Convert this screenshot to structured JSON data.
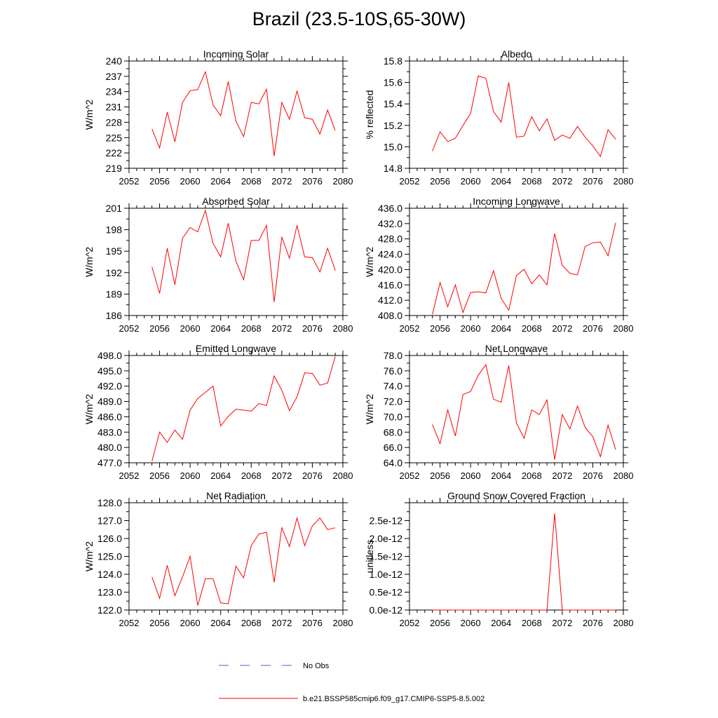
{
  "figure": {
    "title": "Brazil (23.5-10S,65-30W)",
    "line_color": "#ff0000",
    "obs_color": "#5a5ad6",
    "legend": {
      "obs_label": "No Obs",
      "model_label": "b.e21.BSSP585cmip6.f09_g17.CMIP6-SSP5-8.5.002"
    }
  },
  "chart_data": [
    {
      "type": "line",
      "title": "Incoming Solar",
      "ylabel": "W/m^2",
      "xlim": [
        2052,
        2080
      ],
      "x_ticks": [
        2052,
        2056,
        2060,
        2064,
        2068,
        2072,
        2076,
        2080
      ],
      "ylim": [
        219,
        240
      ],
      "y_ticks": [
        219,
        222,
        225,
        228,
        231,
        234,
        237,
        240
      ],
      "y_tick_labels": [
        "219",
        "222",
        "225",
        "228",
        "231",
        "234",
        "237",
        "240"
      ],
      "x": [
        2055,
        2056,
        2057,
        2058,
        2059,
        2060,
        2061,
        2062,
        2063,
        2064,
        2065,
        2066,
        2067,
        2068,
        2069,
        2070,
        2071,
        2072,
        2073,
        2074,
        2075,
        2076,
        2077,
        2078,
        2079
      ],
      "series": [
        {
          "values": [
            226.7,
            223.0,
            230.0,
            224.2,
            231.9,
            234.2,
            234.4,
            237.9,
            231.4,
            229.3,
            236.0,
            228.2,
            225.2,
            231.9,
            231.6,
            234.5,
            221.4,
            231.9,
            228.6,
            234.1,
            228.9,
            228.6,
            225.7,
            230.4,
            226.4
          ]
        }
      ]
    },
    {
      "type": "line",
      "title": "Albedo",
      "ylabel": "% reflected",
      "xlim": [
        2052,
        2080
      ],
      "x_ticks": [
        2052,
        2056,
        2060,
        2064,
        2068,
        2072,
        2076,
        2080
      ],
      "ylim": [
        14.8,
        15.8
      ],
      "y_ticks": [
        14.8,
        15.0,
        15.2,
        15.4,
        15.6,
        15.8
      ],
      "y_tick_labels": [
        "14.8",
        "15.0",
        "15.2",
        "15.4",
        "15.6",
        "15.8"
      ],
      "x": [
        2055,
        2056,
        2057,
        2058,
        2059,
        2060,
        2061,
        2062,
        2063,
        2064,
        2065,
        2066,
        2067,
        2068,
        2069,
        2070,
        2071,
        2072,
        2073,
        2074,
        2075,
        2076,
        2077,
        2078,
        2079
      ],
      "series": [
        {
          "values": [
            14.96,
            15.14,
            15.05,
            15.08,
            15.2,
            15.31,
            15.66,
            15.64,
            15.33,
            15.23,
            15.6,
            15.09,
            15.1,
            15.28,
            15.15,
            15.26,
            15.06,
            15.11,
            15.08,
            15.19,
            15.09,
            15.01,
            14.91,
            15.16,
            15.07
          ]
        }
      ]
    },
    {
      "type": "line",
      "title": "Absorbed Solar",
      "ylabel": "W/m^2",
      "xlim": [
        2052,
        2080
      ],
      "x_ticks": [
        2052,
        2056,
        2060,
        2064,
        2068,
        2072,
        2076,
        2080
      ],
      "ylim": [
        186,
        201
      ],
      "y_ticks": [
        186,
        189,
        192,
        195,
        198,
        201
      ],
      "y_tick_labels": [
        "186",
        "189",
        "192",
        "195",
        "198",
        "201"
      ],
      "x": [
        2055,
        2056,
        2057,
        2058,
        2059,
        2060,
        2061,
        2062,
        2063,
        2064,
        2065,
        2066,
        2067,
        2068,
        2069,
        2070,
        2071,
        2072,
        2073,
        2074,
        2075,
        2076,
        2077,
        2078,
        2079
      ],
      "series": [
        {
          "values": [
            192.8,
            189.1,
            195.4,
            190.3,
            196.8,
            198.3,
            197.7,
            200.7,
            196.1,
            194.2,
            198.9,
            193.6,
            191.0,
            196.5,
            196.5,
            198.6,
            187.9,
            197.0,
            194.0,
            198.6,
            194.2,
            194.1,
            192.1,
            195.4,
            192.3
          ]
        }
      ]
    },
    {
      "type": "line",
      "title": "Incoming Longwave",
      "ylabel": "W/m^2",
      "xlim": [
        2052,
        2080
      ],
      "x_ticks": [
        2052,
        2056,
        2060,
        2064,
        2068,
        2072,
        2076,
        2080
      ],
      "ylim": [
        408,
        436
      ],
      "y_ticks": [
        408,
        412,
        416,
        420,
        424,
        428,
        432,
        436
      ],
      "y_tick_labels": [
        "408.0",
        "412.0",
        "416.0",
        "420.0",
        "424.0",
        "428.0",
        "432.0",
        "436.0"
      ],
      "x": [
        2055,
        2056,
        2057,
        2058,
        2059,
        2060,
        2061,
        2062,
        2063,
        2064,
        2065,
        2066,
        2067,
        2068,
        2069,
        2070,
        2071,
        2072,
        2073,
        2074,
        2075,
        2076,
        2077,
        2078,
        2079
      ],
      "series": [
        {
          "values": [
            408.3,
            416.6,
            410.3,
            416.0,
            408.8,
            414.0,
            414.2,
            413.9,
            419.7,
            412.5,
            409.4,
            418.4,
            420.1,
            416.3,
            418.6,
            416.0,
            429.4,
            421.1,
            419.0,
            418.6,
            426.0,
            427.0,
            427.2,
            423.6,
            432.2
          ]
        }
      ]
    },
    {
      "type": "line",
      "title": "Emitted Longwave",
      "ylabel": "W/m^2",
      "xlim": [
        2052,
        2080
      ],
      "x_ticks": [
        2052,
        2056,
        2060,
        2064,
        2068,
        2072,
        2076,
        2080
      ],
      "ylim": [
        477,
        498
      ],
      "y_ticks": [
        477,
        480,
        483,
        486,
        489,
        492,
        495,
        498
      ],
      "y_tick_labels": [
        "477.0",
        "480.0",
        "483.0",
        "486.0",
        "489.0",
        "492.0",
        "495.0",
        "498.0"
      ],
      "x": [
        2055,
        2056,
        2057,
        2058,
        2059,
        2060,
        2061,
        2062,
        2063,
        2064,
        2065,
        2066,
        2067,
        2068,
        2069,
        2070,
        2071,
        2072,
        2073,
        2074,
        2075,
        2076,
        2077,
        2078,
        2079
      ],
      "series": [
        {
          "values": [
            477.3,
            483.0,
            481.0,
            483.4,
            481.6,
            487.3,
            489.6,
            490.8,
            492.0,
            484.2,
            486.1,
            487.5,
            487.3,
            487.1,
            488.6,
            488.2,
            494.0,
            491.2,
            487.2,
            489.9,
            494.6,
            494.5,
            492.2,
            492.6,
            497.8
          ]
        }
      ]
    },
    {
      "type": "line",
      "title": "Net Longwave",
      "ylabel": "W/m^2",
      "xlim": [
        2052,
        2080
      ],
      "x_ticks": [
        2052,
        2056,
        2060,
        2064,
        2068,
        2072,
        2076,
        2080
      ],
      "ylim": [
        64,
        78
      ],
      "y_ticks": [
        64,
        66,
        68,
        70,
        72,
        74,
        76,
        78
      ],
      "y_tick_labels": [
        "64.0",
        "66.0",
        "68.0",
        "70.0",
        "72.0",
        "74.0",
        "76.0",
        "78.0"
      ],
      "x": [
        2055,
        2056,
        2057,
        2058,
        2059,
        2060,
        2061,
        2062,
        2063,
        2064,
        2065,
        2066,
        2067,
        2068,
        2069,
        2070,
        2071,
        2072,
        2073,
        2074,
        2075,
        2076,
        2077,
        2078,
        2079
      ],
      "series": [
        {
          "values": [
            69.0,
            66.5,
            70.9,
            67.5,
            72.9,
            73.3,
            75.4,
            76.8,
            72.3,
            71.9,
            76.7,
            69.2,
            67.2,
            70.9,
            70.3,
            72.2,
            64.4,
            70.3,
            68.4,
            71.4,
            68.6,
            67.4,
            64.8,
            68.9,
            65.7
          ]
        }
      ]
    },
    {
      "type": "line",
      "title": "Net Radiation",
      "ylabel": "W/m^2",
      "xlim": [
        2052,
        2080
      ],
      "x_ticks": [
        2052,
        2056,
        2060,
        2064,
        2068,
        2072,
        2076,
        2080
      ],
      "ylim": [
        122,
        128
      ],
      "y_ticks": [
        122,
        123,
        124,
        125,
        126,
        127,
        128
      ],
      "y_tick_labels": [
        "122.0",
        "123.0",
        "124.0",
        "125.0",
        "126.0",
        "127.0",
        "128.0"
      ],
      "x": [
        2055,
        2056,
        2057,
        2058,
        2059,
        2060,
        2061,
        2062,
        2063,
        2064,
        2065,
        2066,
        2067,
        2068,
        2069,
        2070,
        2071,
        2072,
        2073,
        2074,
        2075,
        2076,
        2077,
        2078,
        2079
      ],
      "series": [
        {
          "values": [
            123.85,
            122.65,
            124.5,
            122.8,
            123.85,
            125.0,
            122.25,
            123.75,
            123.75,
            122.4,
            122.35,
            124.45,
            123.8,
            125.6,
            126.25,
            126.35,
            123.55,
            126.6,
            125.55,
            127.15,
            125.6,
            126.7,
            127.15,
            126.5,
            126.6
          ]
        }
      ]
    },
    {
      "type": "line",
      "title": "Ground Snow Covered Fraction",
      "ylabel": "unitless",
      "xlim": [
        2052,
        2080
      ],
      "x_ticks": [
        2052,
        2056,
        2060,
        2064,
        2068,
        2072,
        2076,
        2080
      ],
      "ylim": [
        0,
        3e-12
      ],
      "y_ticks": [
        0,
        5e-13,
        1e-12,
        1.5e-12,
        2e-12,
        2.5e-12
      ],
      "y_tick_labels": [
        "0.0e-12",
        "0.5e-12",
        "1.0e-12",
        "1.5e-12",
        "2.0e-12",
        "2.5e-12"
      ],
      "x": [
        2055,
        2056,
        2057,
        2058,
        2059,
        2060,
        2061,
        2062,
        2063,
        2064,
        2065,
        2066,
        2067,
        2068,
        2069,
        2070,
        2071,
        2072,
        2073,
        2074,
        2075,
        2076,
        2077,
        2078,
        2079
      ],
      "series": [
        {
          "values": [
            0,
            0,
            0,
            0,
            0,
            0,
            0,
            0,
            0,
            0,
            0,
            0,
            0,
            0,
            0,
            0,
            2.7e-12,
            0,
            0,
            0,
            0,
            0,
            0,
            0,
            0
          ]
        }
      ]
    }
  ]
}
